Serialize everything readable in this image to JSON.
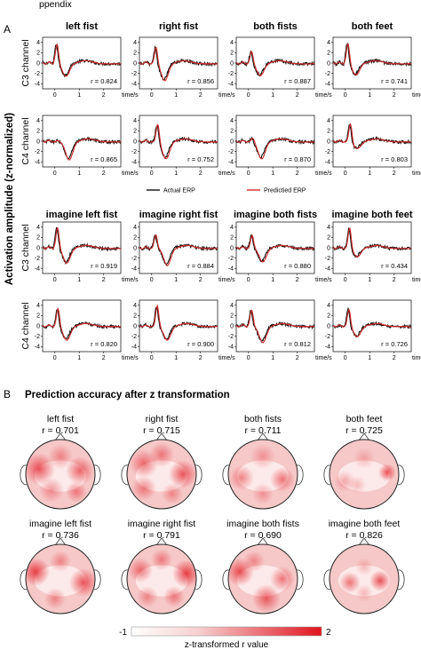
{
  "header": {
    "text": "ppendix"
  },
  "panel_a": {
    "tag": "A",
    "y_axis_label": "Activation amplitude  (z-normalized)",
    "channels": [
      "C3 channel",
      "C4 channel"
    ],
    "x_unit": "time/s",
    "x_ticks": [
      "0",
      "1",
      "2"
    ],
    "y_ticks": [
      "4",
      "2",
      "0",
      "-2",
      "-4"
    ],
    "legend": {
      "actual": "Actual ERP",
      "predicted": "Predictied ERP"
    },
    "series_colors": {
      "actual": "#111111",
      "predicted": "#d42a2a"
    },
    "blocks": [
      {
        "conditions": [
          "left fist",
          "right fist",
          "both fists",
          "both feet"
        ],
        "rows": [
          [
            "r = 0.824",
            "r = 0.856",
            "r = 0.887",
            "r = 0.741"
          ],
          [
            "r = 0.865",
            "r = 0.752",
            "r = 0.870",
            "r = 0.803"
          ]
        ]
      },
      {
        "conditions": [
          "imagine left fist",
          "imagine right fist",
          "imagine both fists",
          "imagine both feet"
        ],
        "rows": [
          [
            "r = 0.919",
            "r = 0.884",
            "r = 0.880",
            "r = 0.434"
          ],
          [
            "r = 0.820",
            "r = 0.900",
            "r = 0.812",
            "r = 0.726"
          ]
        ]
      }
    ]
  },
  "panel_b": {
    "tag": "B",
    "title": "Prediction accuracy after z transformation",
    "maps": [
      {
        "label": "left fist",
        "r": "r = 0.701"
      },
      {
        "label": "right fist",
        "r": "r = 0.715"
      },
      {
        "label": "both fists",
        "r": "r = 0.711"
      },
      {
        "label": "both feet",
        "r": "r = 0.725"
      },
      {
        "label": "imagine left fist",
        "r": "r = 0.736"
      },
      {
        "label": "imagine right fist",
        "r": "r = 0.791"
      },
      {
        "label": "imagine both fists",
        "r": "r = 0.690"
      },
      {
        "label": "imagine both feet",
        "r": "r = 0.826"
      }
    ],
    "colorbar": {
      "min": "-1",
      "max": "2",
      "label": "z-transformed r value",
      "low_color": "#ffffff",
      "high_color": "#e0141e"
    }
  }
}
